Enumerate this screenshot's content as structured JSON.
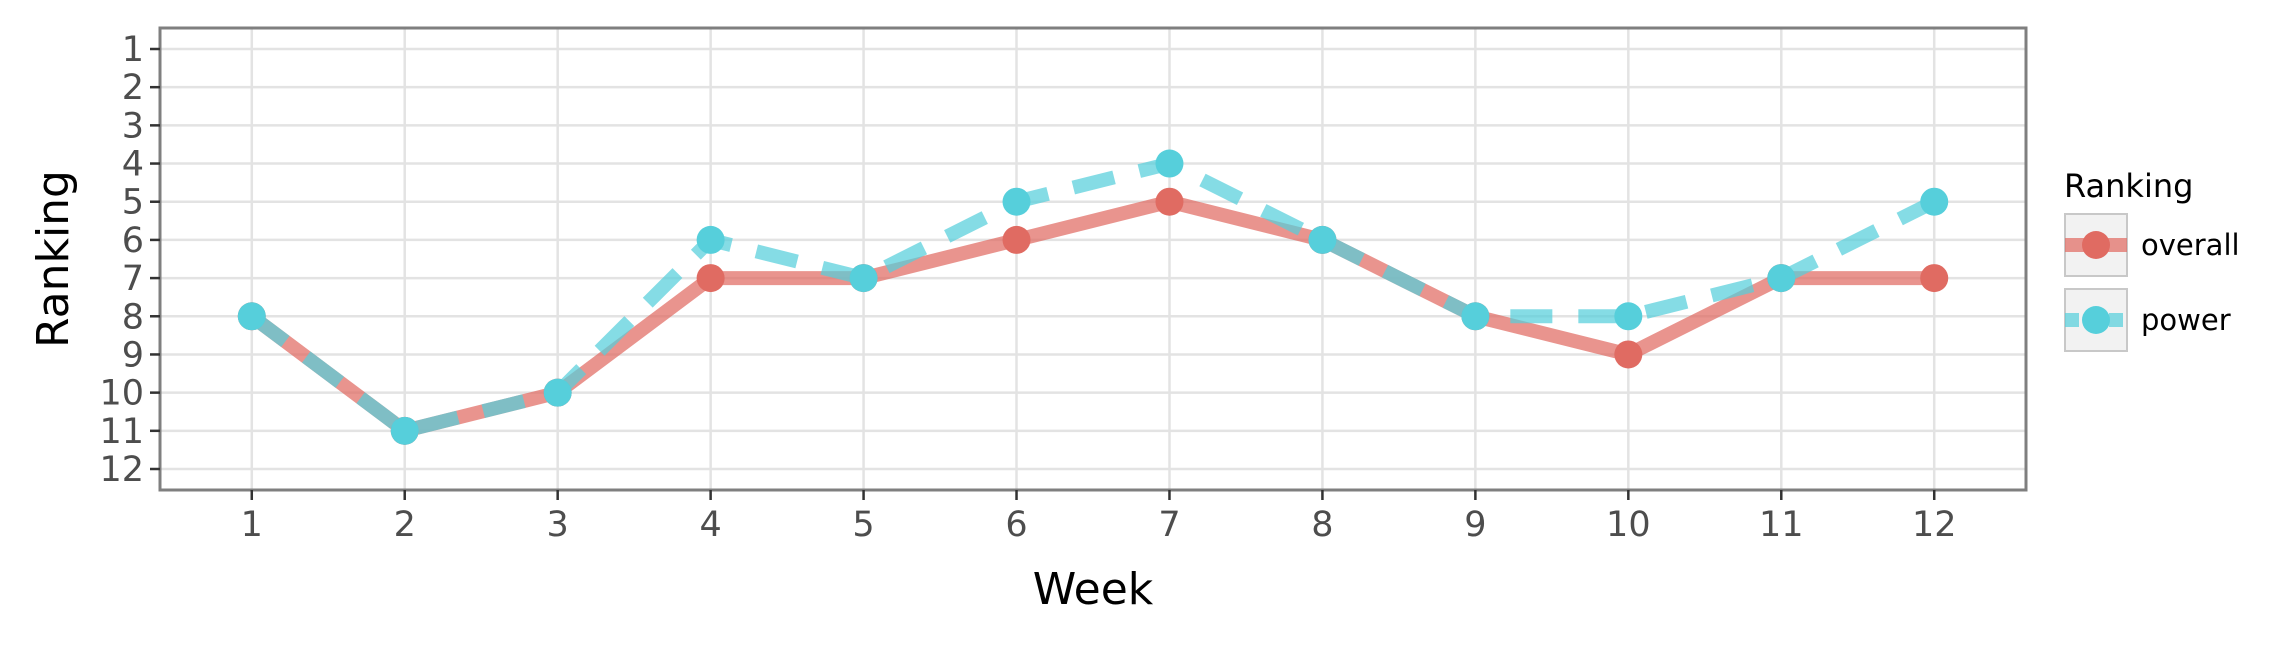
{
  "chart_data": {
    "type": "line",
    "xlabel": "Week",
    "ylabel": "Ranking",
    "x": [
      1,
      2,
      3,
      4,
      5,
      6,
      7,
      8,
      9,
      10,
      11,
      12
    ],
    "xlim": [
      0.4,
      12.6
    ],
    "ylim": [
      12.55,
      0.45
    ],
    "y_reversed": true,
    "x_ticks": [
      1,
      2,
      3,
      4,
      5,
      6,
      7,
      8,
      9,
      10,
      11,
      12
    ],
    "y_ticks": [
      1,
      2,
      3,
      4,
      5,
      6,
      7,
      8,
      9,
      10,
      11,
      12
    ],
    "grid": true,
    "legend": {
      "title": "Ranking",
      "position": "right"
    },
    "series": [
      {
        "name": "overall",
        "color": "#E06B62",
        "line_style": "solid",
        "values": [
          8,
          11,
          10,
          7,
          7,
          6,
          5,
          6,
          8,
          9,
          7,
          7
        ]
      },
      {
        "name": "power",
        "color": "#56CFDB",
        "line_style": "dashed",
        "values": [
          8,
          11,
          10,
          6,
          7,
          5,
          4,
          6,
          8,
          8,
          7,
          5
        ]
      }
    ]
  }
}
